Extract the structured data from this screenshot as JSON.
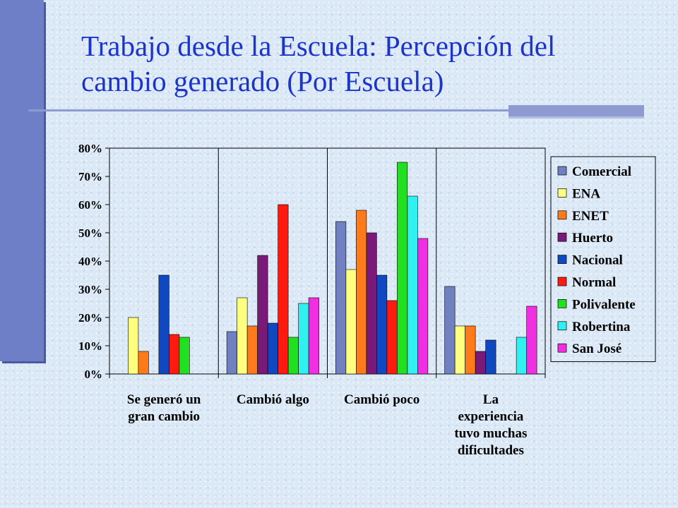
{
  "title_lines": [
    "Trabajo desde la Escuela: Percepción del",
    "cambio generado (Por Escuela)"
  ],
  "chart_data": {
    "type": "bar",
    "categories": [
      [
        "Se generó un",
        "gran cambio"
      ],
      [
        "Cambió algo"
      ],
      [
        "Cambió poco"
      ],
      [
        "La",
        "experiencia",
        "tuvo muchas",
        "dificultades"
      ]
    ],
    "ylim": [
      0,
      80
    ],
    "yticks": [
      "0%",
      "10%",
      "20%",
      "30%",
      "40%",
      "50%",
      "60%",
      "70%",
      "80%"
    ],
    "grid": "vertical separators between categories",
    "legend_position": "right",
    "series": [
      {
        "name": "Comercial",
        "color": "#7080c0",
        "values": [
          0,
          15,
          54,
          31
        ]
      },
      {
        "name": "ENA",
        "color": "#ffff80",
        "values": [
          20,
          27,
          37,
          17
        ]
      },
      {
        "name": "ENET",
        "color": "#ff7a1a",
        "values": [
          8,
          17,
          58,
          17
        ]
      },
      {
        "name": "Huerto",
        "color": "#7a1a78",
        "values": [
          0,
          42,
          50,
          8
        ]
      },
      {
        "name": "Nacional",
        "color": "#1048c0",
        "values": [
          35,
          18,
          35,
          12
        ]
      },
      {
        "name": "Normal",
        "color": "#ff1a10",
        "values": [
          14,
          60,
          26,
          0
        ]
      },
      {
        "name": "Polivalente",
        "color": "#20e020",
        "values": [
          13,
          13,
          75,
          0
        ]
      },
      {
        "name": "Robertina",
        "color": "#30f0f0",
        "values": [
          0,
          25,
          63,
          13
        ]
      },
      {
        "name": "San José",
        "color": "#f030e0",
        "values": [
          0,
          27,
          48,
          24
        ]
      }
    ]
  }
}
